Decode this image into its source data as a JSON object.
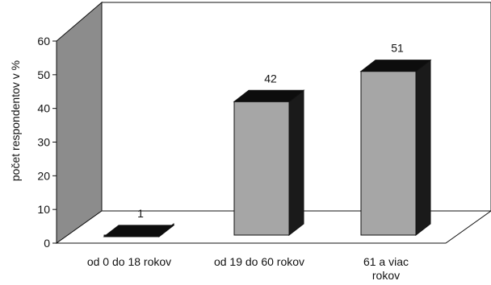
{
  "chart_data": {
    "type": "bar",
    "style": "3d",
    "title": "",
    "xlabel": "",
    "ylabel": "počet respondentov v %",
    "ylim": [
      0,
      60
    ],
    "yticks": [
      0,
      10,
      20,
      30,
      40,
      50,
      60
    ],
    "categories": [
      [
        "od 0 do 18 rokov"
      ],
      [
        "od 19 do 60 rokov"
      ],
      [
        "61 a viac",
        "rokov"
      ]
    ],
    "values": [
      1,
      42,
      51
    ],
    "data_labels": [
      "1",
      "42",
      "51"
    ],
    "grid": false,
    "legend": "none",
    "colors": {
      "bar_front": "#a6a6a6",
      "bar_top": "#0d0d0d",
      "bar_side": "#1a1a1a",
      "wall": "#ffffff",
      "left_wall": "#8c8c8c",
      "floor": "#ffffff",
      "stroke": "#111111"
    }
  }
}
